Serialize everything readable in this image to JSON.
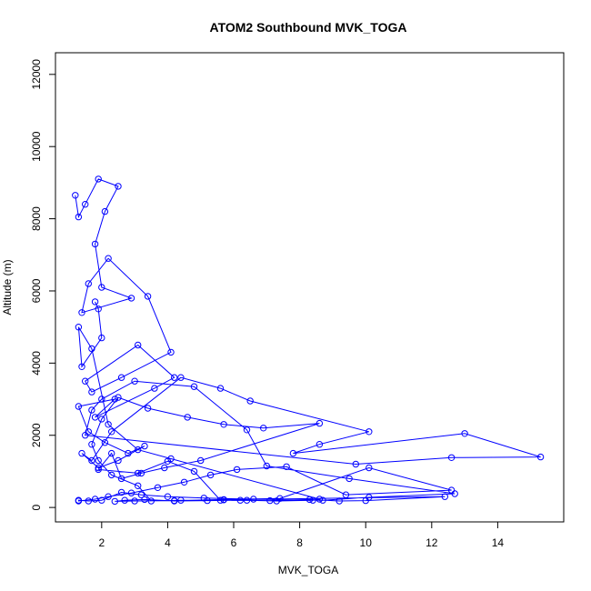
{
  "chart_data": {
    "type": "scatter",
    "title": "ATOM2 Southbound MVK_TOGA",
    "xlabel": "MVK_TOGA",
    "ylabel": "Altitude (m)",
    "xlim": [
      0.6,
      16.0
    ],
    "ylim": [
      -400,
      12600
    ],
    "xticks": [
      2,
      4,
      6,
      8,
      10,
      12,
      14
    ],
    "yticks": [
      0,
      2000,
      4000,
      6000,
      8000,
      10000,
      12000
    ],
    "series_color": "#0000ff",
    "connected": true,
    "grid": false,
    "x": [
      1.2,
      1.3,
      1.5,
      1.9,
      2.5,
      2.1,
      1.8,
      2.0,
      2.9,
      1.4,
      1.6,
      2.2,
      3.4,
      4.1,
      2.6,
      1.7,
      1.5,
      3.1,
      4.2,
      3.6,
      1.8,
      2.4,
      1.3,
      1.6,
      2.1,
      2.8,
      3.3,
      2.5,
      1.9,
      1.4,
      1.7,
      2.3,
      4.4,
      5.6,
      6.5,
      10.1,
      8.6,
      7.8,
      13.0,
      15.3,
      12.6,
      9.7,
      1.5,
      1.7,
      2.0,
      3.0,
      4.8,
      6.4,
      7.0,
      9.5,
      12.7,
      10.1,
      8.7,
      6.6,
      5.1,
      4.0,
      3.2,
      2.6,
      2.0,
      1.6,
      1.3,
      1.3,
      1.8,
      2.2,
      2.9,
      3.7,
      4.5,
      5.3,
      6.1,
      7.6,
      9.4,
      12.6,
      10.1,
      7.4,
      5.7,
      4.2,
      3.0,
      2.4,
      2.7,
      3.3,
      4.2,
      5.2,
      6.2,
      7.1,
      8.3,
      9.2,
      10.0,
      12.4,
      5.7,
      4.4,
      3.5,
      3.1,
      2.3,
      1.9,
      1.7,
      2.0,
      2.5,
      3.4,
      4.6,
      5.7,
      6.9,
      8.6,
      5.0,
      3.9,
      3.2,
      2.6,
      2.3,
      1.9,
      3.1,
      4.0,
      4.8,
      5.6,
      6.4,
      7.3,
      8.4,
      8.6,
      4.1,
      3.1,
      2.2,
      1.7,
      1.3,
      1.4,
      2.0,
      1.9,
      1.8
    ],
    "y": [
      8650,
      8050,
      8400,
      9100,
      8900,
      8200,
      7300,
      6100,
      5800,
      5400,
      6200,
      6900,
      5850,
      4300,
      3600,
      3200,
      3500,
      4500,
      3600,
      3300,
      2500,
      3000,
      2800,
      2100,
      1800,
      1500,
      1700,
      1300,
      1100,
      1500,
      1300,
      2100,
      3600,
      3300,
      2950,
      2100,
      1750,
      1500,
      2050,
      1400,
      1380,
      1200,
      2000,
      2700,
      3000,
      3500,
      3350,
      2150,
      1150,
      800,
      380,
      280,
      200,
      230,
      260,
      300,
      350,
      420,
      200,
      180,
      200,
      180,
      230,
      300,
      400,
      550,
      700,
      900,
      1050,
      1130,
      350,
      480,
      1100,
      250,
      220,
      190,
      180,
      170,
      200,
      220,
      180,
      190,
      200,
      190,
      220,
      180,
      190,
      300,
      210,
      200,
      180,
      600,
      900,
      1300,
      1750,
      2450,
      3050,
      2750,
      2500,
      2300,
      2200,
      2330,
      1300,
      1100,
      950,
      800,
      1500,
      1050,
      950,
      1280,
      1000,
      200,
      200,
      180,
      200,
      230,
      1350,
      1600,
      2300,
      4400,
      5000,
      3900,
      4700,
      5500,
      5700
    ]
  }
}
